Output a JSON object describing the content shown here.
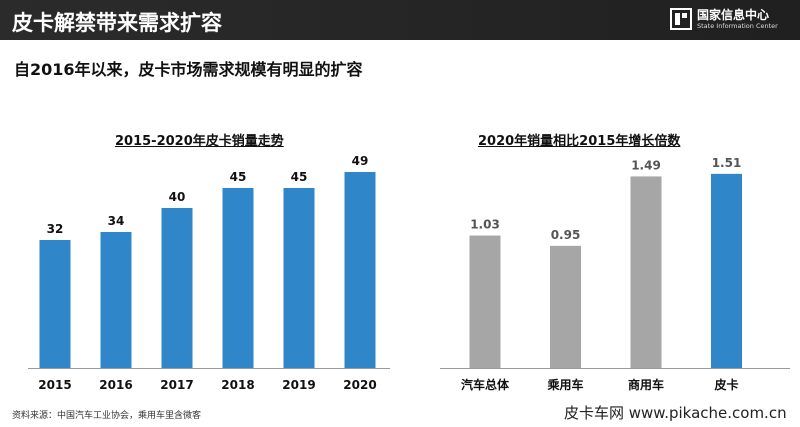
{
  "header": {
    "title": "皮卡解禁带来需求扩容"
  },
  "logo": {
    "name": "国家信息中心",
    "sub": "State Information Center"
  },
  "subtitle": "自2016年以来，皮卡市场需求规模有明显的扩容",
  "chart_data": [
    {
      "type": "bar",
      "title": "2015-2020年皮卡销量走势",
      "categories": [
        "2015",
        "2016",
        "2017",
        "2018",
        "2019",
        "2020"
      ],
      "values": [
        32,
        34,
        40,
        45,
        45,
        49
      ],
      "ylim": [
        0,
        54
      ],
      "colors": [
        "#2f86c8",
        "#2f86c8",
        "#2f86c8",
        "#2f86c8",
        "#2f86c8",
        "#2f86c8"
      ],
      "grid": false
    },
    {
      "type": "bar",
      "title": "2020年销量相比2015年增长倍数",
      "categories": [
        "汽车总体",
        "乘用车",
        "商用车",
        "皮卡"
      ],
      "values": [
        1.03,
        0.95,
        1.49,
        1.51
      ],
      "value_labels": [
        "1.03",
        "0.95",
        "1.49",
        "1.51"
      ],
      "ylim": [
        0,
        1.68
      ],
      "colors": [
        "#a6a6a6",
        "#a6a6a6",
        "#a6a6a6",
        "#2f86c8"
      ],
      "grid": false
    }
  ],
  "footer": {
    "source": "资料来源：中国汽车工业协会，乘用车里含微客",
    "watermark": "皮卡车网 www.pikache.com.cn"
  }
}
